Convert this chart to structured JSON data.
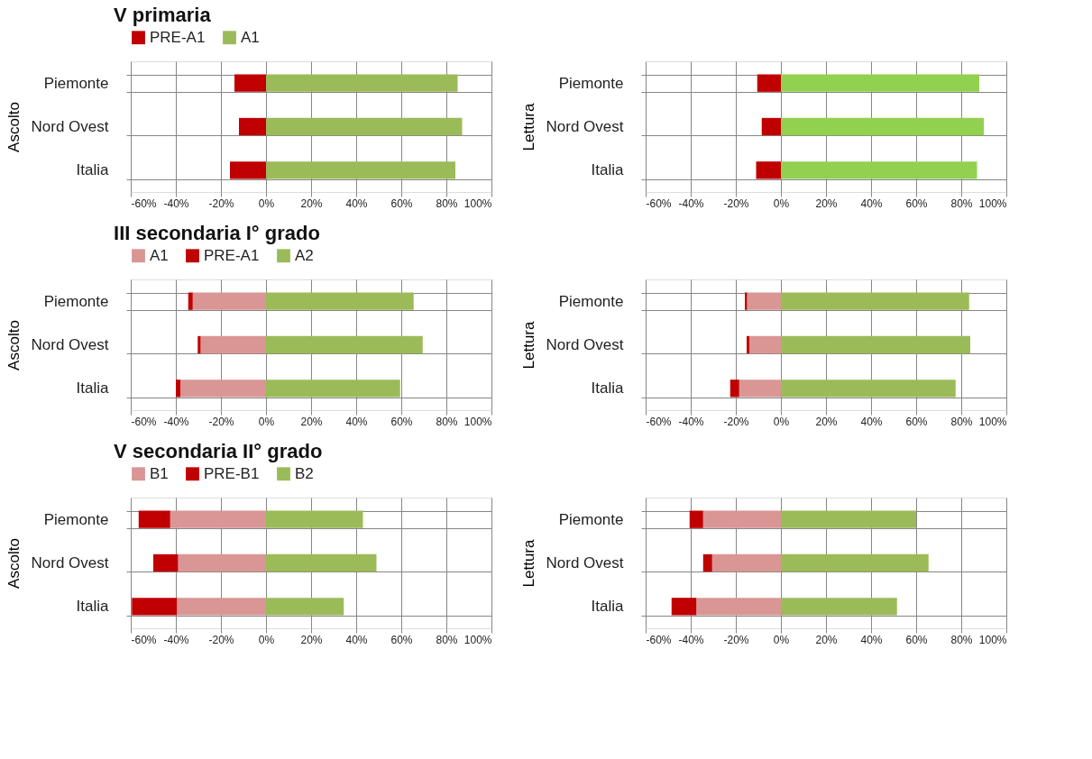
{
  "chart_data": [
    {
      "type": "bar",
      "orientation": "horizontal",
      "stacked": true,
      "title": "V primaria",
      "ylabel": "Ascolto",
      "legend": "top left",
      "grid": true,
      "categories": [
        "Piemonte",
        "Nord Ovest",
        "Italia"
      ],
      "xlim": [
        -60,
        100
      ],
      "xticks": [
        {
          "value": -60,
          "label": "-60%"
        },
        {
          "value": -40,
          "label": "-40%"
        },
        {
          "value": -20,
          "label": "-20%"
        },
        {
          "value": 0,
          "label": "0%"
        },
        {
          "value": 20,
          "label": "20%"
        },
        {
          "value": 40,
          "label": "40%"
        },
        {
          "value": 60,
          "label": "60%"
        },
        {
          "value": 80,
          "label": "80%"
        },
        {
          "value": 100,
          "label": "100%"
        }
      ],
      "series": [
        {
          "name": "PRE-A1",
          "color": "#c00000",
          "values": [
            -14,
            -12,
            -16
          ]
        },
        {
          "name": "A1",
          "color": "#9bbb59",
          "values": [
            85,
            87,
            84
          ]
        }
      ]
    },
    {
      "type": "bar",
      "orientation": "horizontal",
      "stacked": true,
      "ylabel": "Lettura",
      "grid": true,
      "categories": [
        "Piemonte",
        "Nord Ovest",
        "Italia"
      ],
      "xlim": [
        -60,
        100
      ],
      "xticks": [
        {
          "value": -60,
          "label": "-60%"
        },
        {
          "value": -40,
          "label": "-40%"
        },
        {
          "value": -20,
          "label": "-20%"
        },
        {
          "value": 0,
          "label": "0%"
        },
        {
          "value": 20,
          "label": "20%"
        },
        {
          "value": 40,
          "label": "40%"
        },
        {
          "value": 60,
          "label": "60%"
        },
        {
          "value": 80,
          "label": "80%"
        },
        {
          "value": 100,
          "label": "100%"
        }
      ],
      "series": [
        {
          "color": "#c00000",
          "values": [
            -10.5,
            -8.5,
            -11
          ]
        },
        {
          "color": "#92d050",
          "values": [
            88,
            90,
            87
          ]
        }
      ]
    },
    {
      "type": "bar",
      "orientation": "horizontal",
      "stacked": true,
      "title": "III secondaria I° grado",
      "ylabel": "Ascolto",
      "legend": "top left",
      "grid": true,
      "categories": [
        "Piemonte",
        "Nord Ovest",
        "Italia"
      ],
      "xlim": [
        -60,
        100
      ],
      "xticks": [
        {
          "value": -60,
          "label": "-60%"
        },
        {
          "value": -40,
          "label": "-40%"
        },
        {
          "value": -20,
          "label": "-20%"
        },
        {
          "value": 0,
          "label": "0%"
        },
        {
          "value": 20,
          "label": "20%"
        },
        {
          "value": 40,
          "label": "40%"
        },
        {
          "value": 60,
          "label": "60%"
        },
        {
          "value": 80,
          "label": "80%"
        },
        {
          "value": 100,
          "label": "100%"
        }
      ],
      "series": [
        {
          "name": "A1",
          "color": "#d99694",
          "values": [
            -32.5,
            -29,
            -38
          ]
        },
        {
          "name": "PRE-A1",
          "color": "#c00000",
          "values": [
            -2,
            -1.3,
            -2
          ]
        },
        {
          "name": "A2",
          "color": "#9bbb59",
          "values": [
            65.5,
            69.5,
            59.5
          ]
        }
      ]
    },
    {
      "type": "bar",
      "orientation": "horizontal",
      "stacked": true,
      "ylabel": "Lettura",
      "grid": true,
      "categories": [
        "Piemonte",
        "Nord Ovest",
        "Italia"
      ],
      "xlim": [
        -60,
        100
      ],
      "xticks": [
        {
          "value": -60,
          "label": "-60%"
        },
        {
          "value": -40,
          "label": "-40%"
        },
        {
          "value": -20,
          "label": "-20%"
        },
        {
          "value": 0,
          "label": "0%"
        },
        {
          "value": 20,
          "label": "20%"
        },
        {
          "value": 40,
          "label": "40%"
        },
        {
          "value": 60,
          "label": "60%"
        },
        {
          "value": 80,
          "label": "80%"
        },
        {
          "value": 100,
          "label": "100%"
        }
      ],
      "series": [
        {
          "color": "#d99694",
          "values": [
            -15,
            -14,
            -18.5
          ]
        },
        {
          "color": "#c00000",
          "values": [
            -1,
            -1.2,
            -4
          ]
        },
        {
          "color": "#9bbb59",
          "values": [
            83.5,
            84,
            77.5
          ]
        }
      ]
    },
    {
      "type": "bar",
      "orientation": "horizontal",
      "stacked": true,
      "title": "V secondaria II° grado",
      "ylabel": "Ascolto",
      "legend": "top left",
      "grid": true,
      "categories": [
        "Piemonte",
        "Nord Ovest",
        "Italia"
      ],
      "xlim": [
        -60,
        100
      ],
      "xticks": [
        {
          "value": -60,
          "label": "-60%"
        },
        {
          "value": -40,
          "label": "-40%"
        },
        {
          "value": -20,
          "label": "-20%"
        },
        {
          "value": 0,
          "label": "0%"
        },
        {
          "value": 20,
          "label": "20%"
        },
        {
          "value": 40,
          "label": "40%"
        },
        {
          "value": 60,
          "label": "60%"
        },
        {
          "value": 80,
          "label": "80%"
        },
        {
          "value": 100,
          "label": "100%"
        }
      ],
      "series": [
        {
          "name": "B1",
          "color": "#d99694",
          "values": [
            -42.5,
            -39,
            -39.5
          ]
        },
        {
          "name": "PRE-B1",
          "color": "#c00000",
          "values": [
            -14,
            -11,
            -20
          ]
        },
        {
          "name": "B2",
          "color": "#9bbb59",
          "values": [
            43,
            49,
            34.5
          ]
        }
      ]
    },
    {
      "type": "bar",
      "orientation": "horizontal",
      "stacked": true,
      "ylabel": "Lettura",
      "grid": true,
      "categories": [
        "Piemonte",
        "Nord Ovest",
        "Italia"
      ],
      "xlim": [
        -60,
        100
      ],
      "xticks": [
        {
          "value": -60,
          "label": "-60%"
        },
        {
          "value": -40,
          "label": "-40%"
        },
        {
          "value": -20,
          "label": "-20%"
        },
        {
          "value": 0,
          "label": "0%"
        },
        {
          "value": 20,
          "label": "20%"
        },
        {
          "value": 40,
          "label": "40%"
        },
        {
          "value": 60,
          "label": "60%"
        },
        {
          "value": 80,
          "label": "80%"
        },
        {
          "value": 100,
          "label": "100%"
        }
      ],
      "series": [
        {
          "color": "#d99694",
          "values": [
            -34.5,
            -30.5,
            -37.5
          ]
        },
        {
          "color": "#c00000",
          "values": [
            -6,
            -4,
            -11
          ]
        },
        {
          "color": "#9bbb59",
          "values": [
            60,
            65.5,
            51.5
          ]
        }
      ]
    }
  ]
}
